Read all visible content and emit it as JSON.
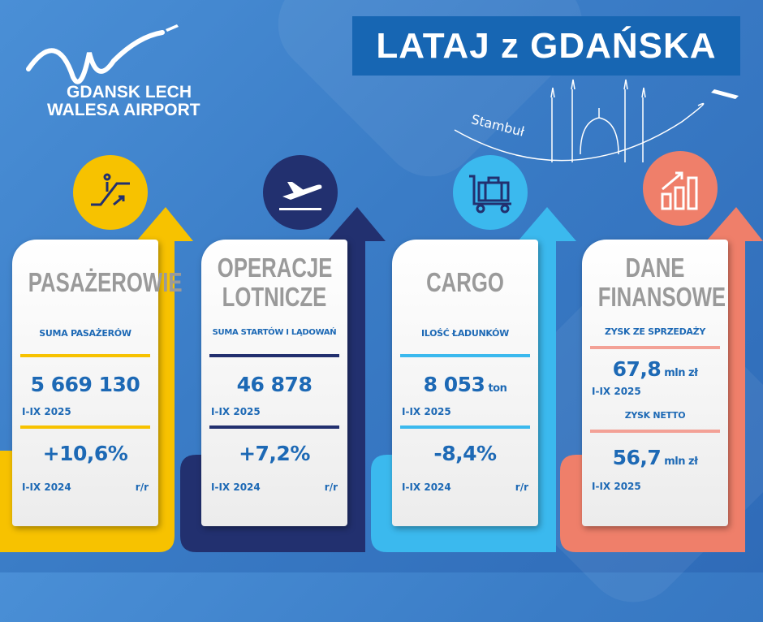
{
  "banner_title": "LATAJ z GDAŃSKA",
  "logo": {
    "line1": "GDANSK LECH",
    "line2": "WALESA AIRPORT"
  },
  "destination": "Stambuł",
  "colors": {
    "yellow": "#f7c200",
    "navy": "#22306f",
    "lightblue": "#3bb9ee",
    "salmon": "#ef7f6a",
    "text": "#1d69b5"
  },
  "cards": [
    {
      "title": "PASAŻEROWIE",
      "label": "SUMA PASAŻERÓW",
      "value": "5 669 130",
      "period": "I-IX 2025",
      "change": "+10,6%",
      "compare_period": "I-IX 2024",
      "yoy": "r/r",
      "icon": "escalator-icon"
    },
    {
      "title1": "OPERACJE",
      "title2": "LOTNICZE",
      "label": "SUMA STARTÓW I LĄDOWAŃ",
      "value": "46 878",
      "period": "I-IX 2025",
      "change": "+7,2%",
      "compare_period": "I-IX 2024",
      "yoy": "r/r",
      "icon": "plane-takeoff-icon"
    },
    {
      "title": "CARGO",
      "label": "ILOŚĆ ŁADUNKÓW",
      "value": "8 053",
      "unit": "ton",
      "period": "I-IX 2025",
      "change": "-8,4%",
      "compare_period": "I-IX 2024",
      "yoy": "r/r",
      "icon": "luggage-cart-icon"
    },
    {
      "title1": "DANE",
      "title2": "FINANSOWE",
      "label": "ZYSK ZE SPRZEDAŻY",
      "value": "67,8",
      "unit": "mln zł",
      "period": "I-IX 2025",
      "label2": "ZYSK NETTO",
      "value2": "56,7",
      "unit2": "mln zł",
      "period2": "I-IX 2025",
      "icon": "growth-chart-icon"
    }
  ]
}
